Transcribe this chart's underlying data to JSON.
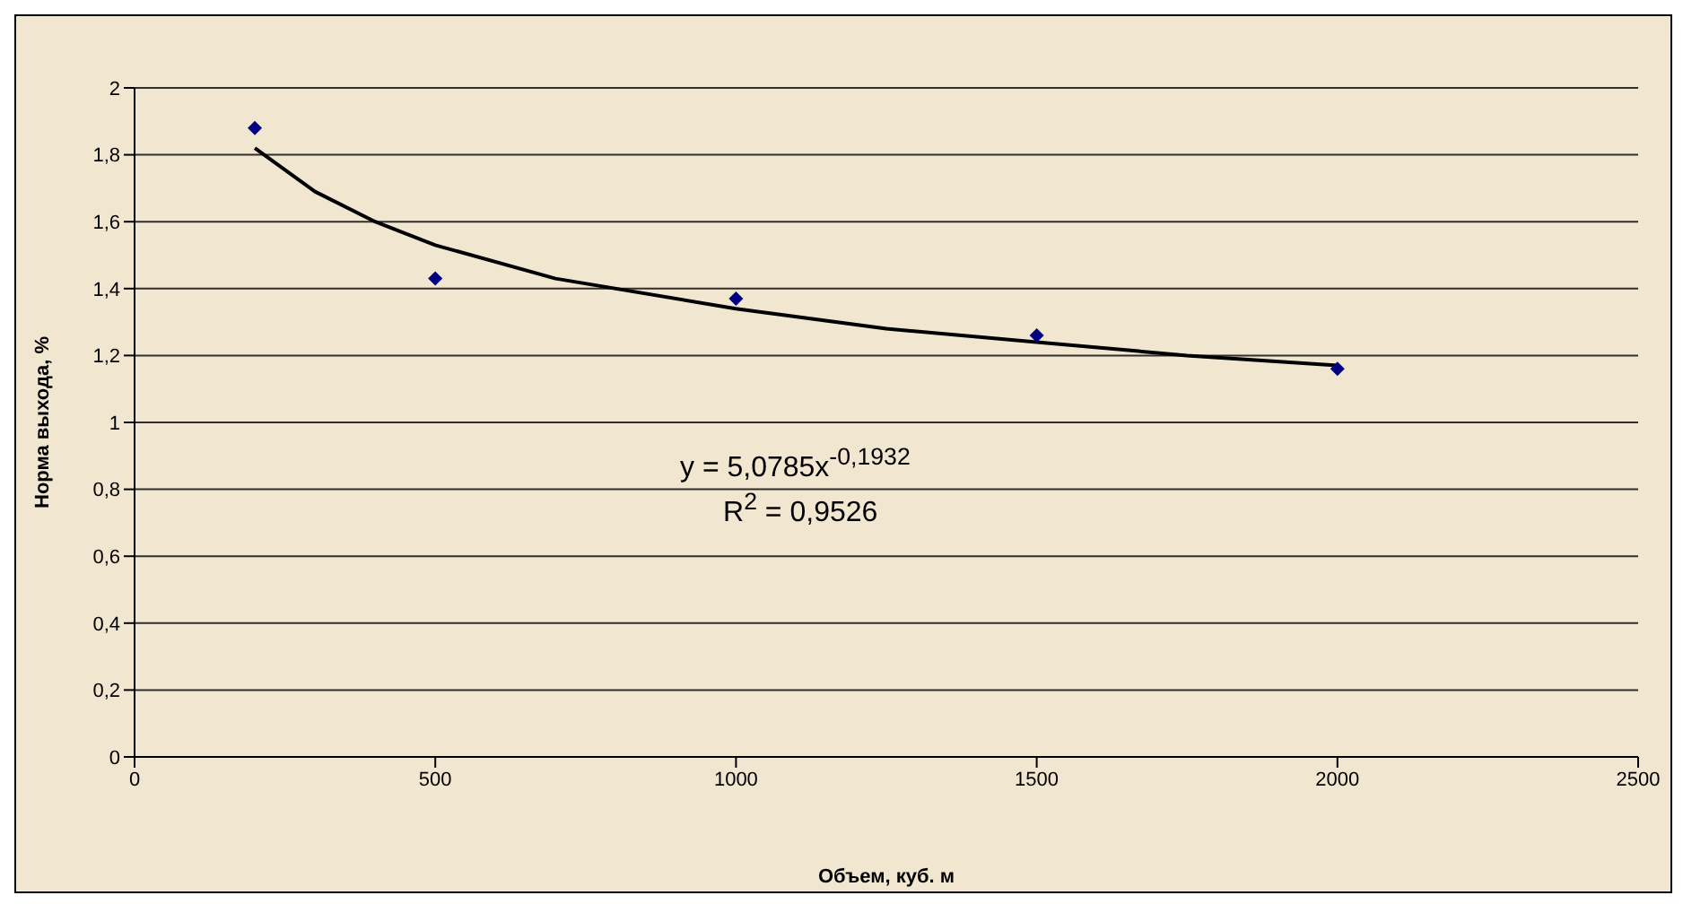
{
  "chart_data": {
    "type": "scatter",
    "xlabel": "Объем, куб. м",
    "ylabel": "Норма выхода, %",
    "xlim": [
      0,
      2500
    ],
    "xticks": [
      0,
      500,
      1000,
      1500,
      2000,
      2500
    ],
    "ylim": [
      0,
      2
    ],
    "yticks": [
      0,
      {
        "value": 0.2,
        "label": "0,2"
      },
      {
        "value": 0.4,
        "label": "0,4"
      },
      {
        "value": 0.6,
        "label": "0,6"
      },
      {
        "value": 0.8,
        "label": "0,8"
      },
      1,
      {
        "value": 1.2,
        "label": "1,2"
      },
      {
        "value": 1.4,
        "label": "1,4"
      },
      {
        "value": 1.6,
        "label": "1,6"
      },
      {
        "value": 1.8,
        "label": "1,8"
      },
      2
    ],
    "series": [
      {
        "color": "#000080",
        "marker": "diamond",
        "x": [
          200,
          500,
          1000,
          1500,
          2000
        ],
        "values": [
          1.88,
          1.43,
          1.37,
          1.26,
          1.16
        ]
      },
      {
        "type": "line",
        "color": "#000000",
        "marker": "none",
        "line_style": "solid",
        "x": [
          200,
          300,
          400,
          500,
          700,
          1000,
          1250,
          1500,
          1750,
          2000
        ],
        "values": [
          1.82,
          1.69,
          1.6,
          1.53,
          1.43,
          1.34,
          1.28,
          1.24,
          1.2,
          1.17
        ]
      }
    ],
    "annotations": [
      "y = 5,0785x$^{-0,1932}$",
      "R$^{2}$ = 0,9526"
    ],
    "grid": "y"
  }
}
